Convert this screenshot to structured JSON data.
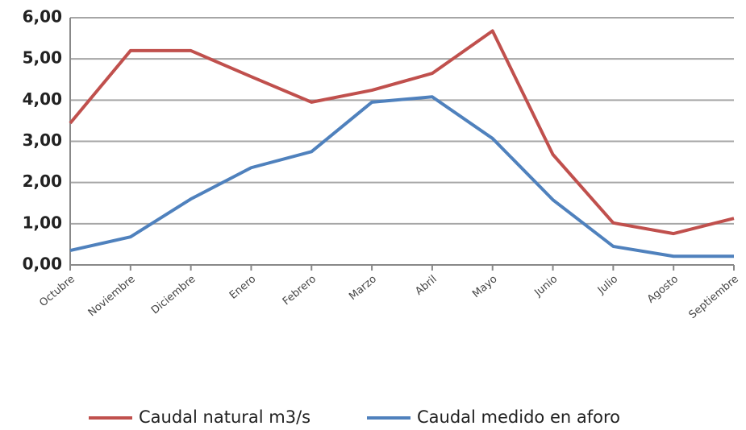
{
  "chart_data": {
    "type": "line",
    "categories": [
      "Octubre",
      "Noviembre",
      "Diciembre",
      "Enero",
      "Febrero",
      "Marzo",
      "Abril",
      "Mayo",
      "Junio",
      "Julio",
      "Agosto",
      "Septiembre"
    ],
    "series": [
      {
        "name": "Caudal natural m3/s",
        "color": "#c0504d",
        "values": [
          3.44,
          5.2,
          5.2,
          4.57,
          3.95,
          4.24,
          4.65,
          5.68,
          2.68,
          1.02,
          0.76,
          1.13
        ]
      },
      {
        "name": "Caudal medido en aforo",
        "color": "#4f81bd",
        "values": [
          0.35,
          0.68,
          1.6,
          2.36,
          2.75,
          3.95,
          4.08,
          3.07,
          1.58,
          0.45,
          0.21,
          0.21
        ]
      }
    ],
    "ylim": [
      0,
      6
    ],
    "yticks": [
      {
        "value": 0,
        "label": "0,00"
      },
      {
        "value": 1,
        "label": "1,00"
      },
      {
        "value": 2,
        "label": "2,00"
      },
      {
        "value": 3,
        "label": "3,00"
      },
      {
        "value": 4,
        "label": "4,00"
      },
      {
        "value": 5,
        "label": "5,00"
      },
      {
        "value": 6,
        "label": "6,00"
      }
    ],
    "grid": true,
    "legend": "bottom"
  }
}
